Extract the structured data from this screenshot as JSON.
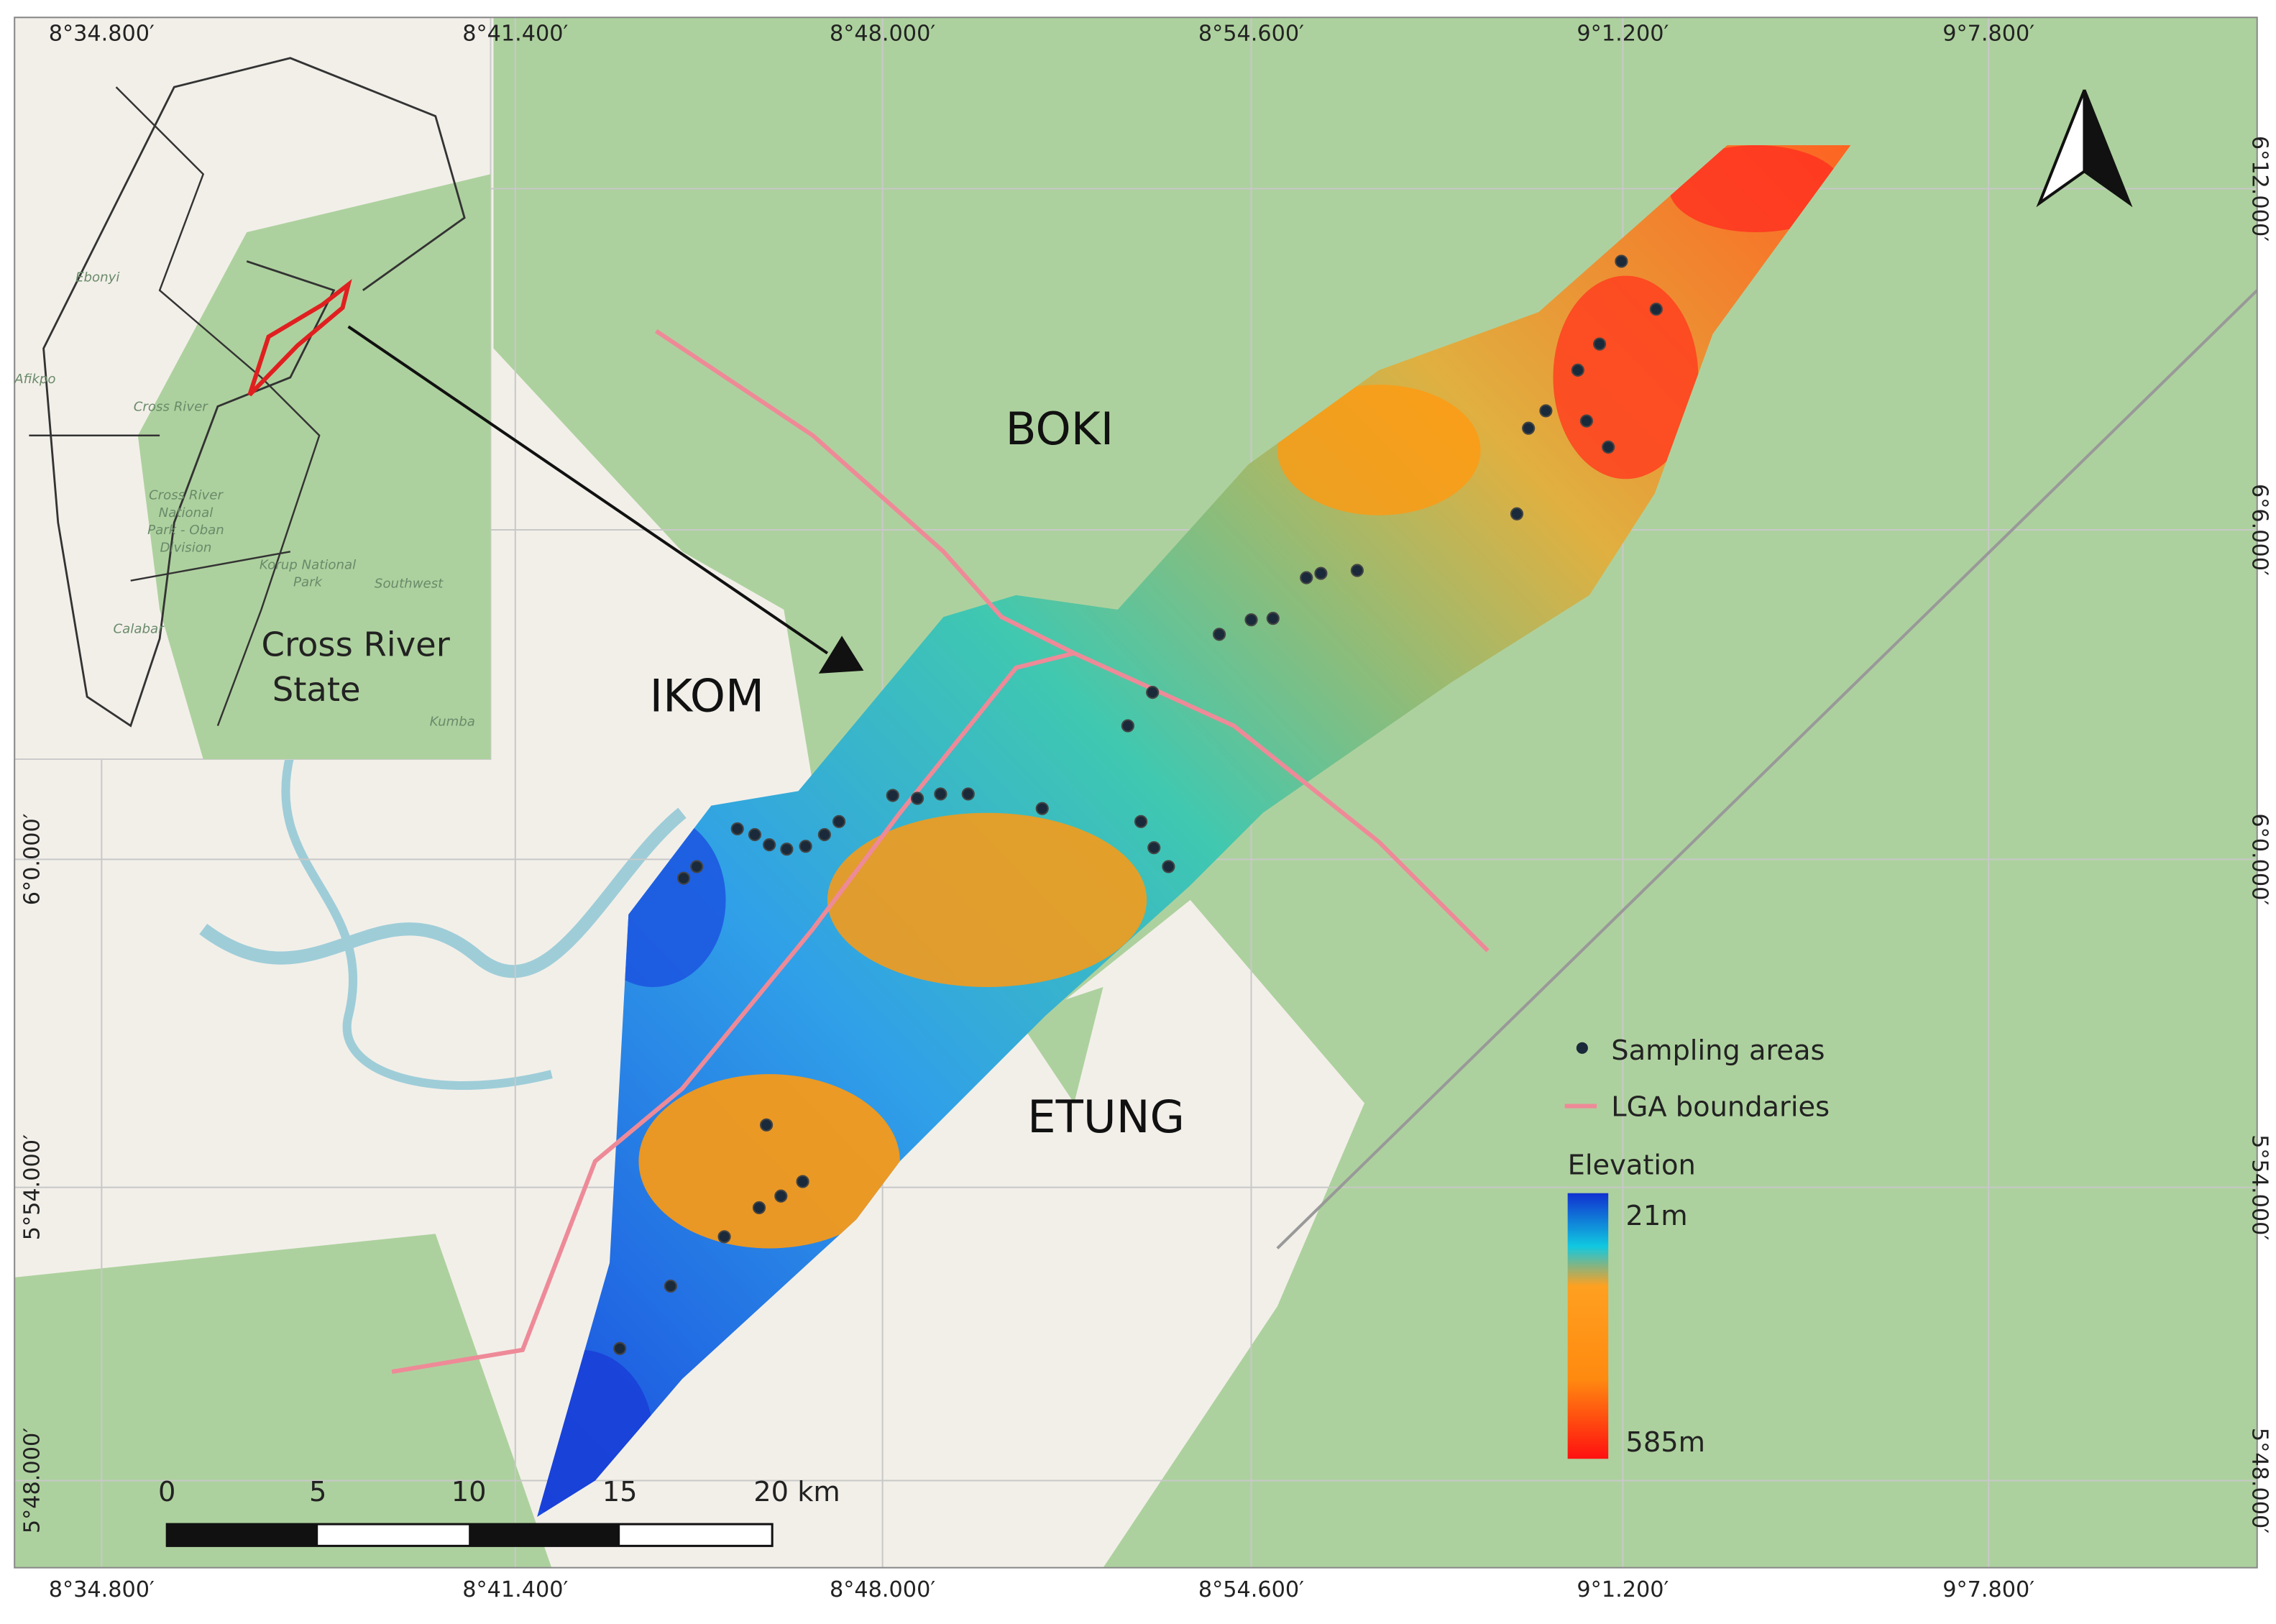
{
  "map": {
    "longitude_labels": [
      "8°34.800′",
      "8°41.400′",
      "8°48.000′",
      "8°54.600′",
      "9°1.200′",
      "9°7.800′"
    ],
    "latitude_labels_left": [
      "6°0.000′",
      "5°54.000′",
      "5°48.000′"
    ],
    "latitude_labels_right": [
      "6°12.000′",
      "6°6.000′",
      "6°0.000′",
      "5°54.000′",
      "5°48.000′"
    ],
    "regions": [
      "BOKI",
      "IKOM",
      "ETUNG"
    ],
    "inset": {
      "title_lines": [
        "Cross River",
        "State"
      ],
      "places": [
        "Ebonyi",
        "Afikpo",
        "Cross River",
        "Southwest",
        "Calabar",
        "Kumba"
      ],
      "park_oban": [
        "Cross River",
        "National",
        "Park - Oban",
        "Division"
      ],
      "park_korup": [
        "Korup National",
        "Park"
      ]
    },
    "legend": {
      "sampling": "Sampling areas",
      "boundaries": "LGA boundaries",
      "elevation_title": "Elevation",
      "elevation_min": "21m",
      "elevation_max": "585m"
    },
    "scale_bar": {
      "labels": [
        "0",
        "5",
        "10",
        "15",
        "20 km"
      ]
    }
  }
}
